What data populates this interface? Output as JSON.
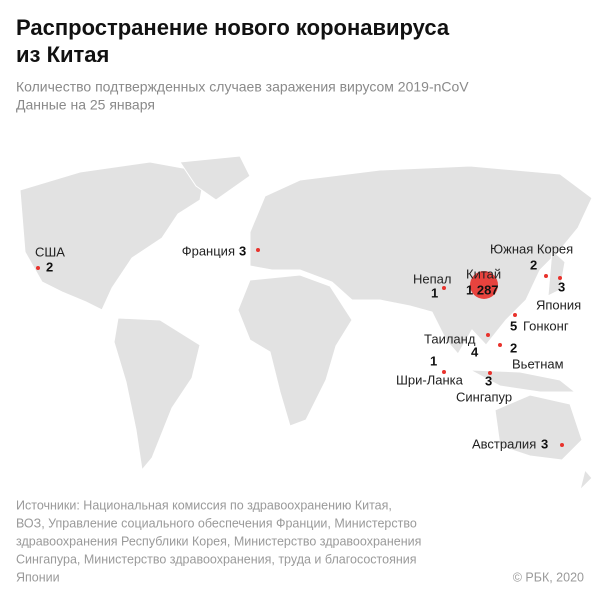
{
  "header": {
    "title_lines": [
      "Распространение нового коронавируса",
      "из Китая"
    ],
    "subtitle_lines": [
      "Количество подтвержденных случаев заражения вирусом 2019-nCoV",
      "Данные на 25 января"
    ]
  },
  "points": [
    {
      "name": "США",
      "value": 2
    },
    {
      "name": "Франция",
      "value": 3
    },
    {
      "name": "Непал",
      "value": 1
    },
    {
      "name": "Китай",
      "value": 1287,
      "value_label": "1 287"
    },
    {
      "name": "Южная Корея",
      "value": 2
    },
    {
      "name": "Япония",
      "value": 3
    },
    {
      "name": "Гонконг",
      "value": 5
    },
    {
      "name": "Таиланд",
      "value": 4
    },
    {
      "name": "Вьетнам",
      "value": 2
    },
    {
      "name": "Шри-Ланка",
      "value": 1
    },
    {
      "name": "Сингапур",
      "value": 3
    },
    {
      "name": "Австралия",
      "value": 3
    }
  ],
  "footer": {
    "source_lines": [
      "Источники: Национальная комиссия по здравоохранению Китая,",
      "ВОЗ, Управление социального обеспечения Франции, Министерство",
      "здравоохранения Республики Корея, Министерство здравоохранения",
      "Сингапура, Министерство здравоохранения, труда и благосостояния",
      "Японии"
    ],
    "copyright": "© РБК, 2020"
  }
}
